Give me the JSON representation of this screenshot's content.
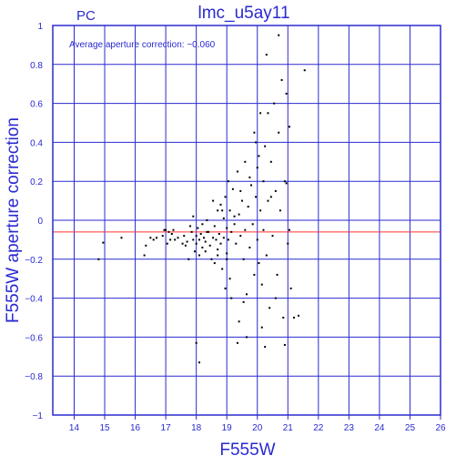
{
  "chart_data": {
    "type": "scatter",
    "title": "lmc_u5ay11",
    "corner_label": "PC",
    "annotation": "Average aperture correction: −0.060",
    "xlabel": "F555W",
    "ylabel": "F555W aperture correction",
    "xlim": [
      13.3,
      26
    ],
    "ylim": [
      -1,
      1
    ],
    "xticks": [
      14,
      15,
      16,
      17,
      18,
      19,
      20,
      21,
      22,
      23,
      24,
      25,
      26
    ],
    "yticks": [
      -1,
      -0.8,
      -0.6,
      -0.4,
      -0.2,
      0,
      0.2,
      0.4,
      0.6,
      0.8,
      1
    ],
    "ytick_labels": [
      "−1",
      "−0.8",
      "−0.6",
      "−0.4",
      "−0.2",
      "0",
      "0.2",
      "0.4",
      "0.6",
      "0.8",
      "1"
    ],
    "grid": true,
    "reference_line": {
      "y": -0.06,
      "color": "#ff3030"
    },
    "colors": {
      "frame": "#2a2ad0",
      "text": "#2a2ad0",
      "points": "#000000"
    },
    "points": [
      [
        14.8,
        -0.2
      ],
      [
        14.95,
        -0.115
      ],
      [
        15.55,
        -0.09
      ],
      [
        16.3,
        -0.18
      ],
      [
        16.35,
        -0.13
      ],
      [
        16.5,
        -0.09
      ],
      [
        16.6,
        -0.1
      ],
      [
        16.7,
        -0.09
      ],
      [
        16.9,
        -0.08
      ],
      [
        17.0,
        -0.05
      ],
      [
        17.05,
        -0.12
      ],
      [
        17.1,
        -0.06
      ],
      [
        17.15,
        -0.1
      ],
      [
        17.2,
        -0.07
      ],
      [
        17.25,
        -0.05
      ],
      [
        17.4,
        -0.09
      ],
      [
        17.6,
        -0.08
      ],
      [
        17.65,
        -0.13
      ],
      [
        17.7,
        -0.11
      ],
      [
        17.75,
        -0.2
      ],
      [
        17.8,
        -0.03
      ],
      [
        17.85,
        -0.06
      ],
      [
        17.9,
        -0.1
      ],
      [
        17.9,
        0.02
      ],
      [
        17.95,
        -0.16
      ],
      [
        18.0,
        -0.08
      ],
      [
        18.0,
        -0.12
      ],
      [
        18.05,
        -0.04
      ],
      [
        18.1,
        -0.1
      ],
      [
        18.1,
        -0.18
      ],
      [
        18.15,
        -0.07
      ],
      [
        18.2,
        -0.02
      ],
      [
        18.2,
        -0.14
      ],
      [
        18.25,
        -0.09
      ],
      [
        18.3,
        -0.11
      ],
      [
        18.35,
        0.0
      ],
      [
        18.4,
        -0.06
      ],
      [
        18.45,
        -0.13
      ],
      [
        18.5,
        -0.2
      ],
      [
        18.55,
        -0.09
      ],
      [
        18.6,
        -0.03
      ],
      [
        18.6,
        -0.22
      ],
      [
        18.65,
        -0.1
      ],
      [
        18.7,
        0.05
      ],
      [
        18.7,
        -0.15
      ],
      [
        18.75,
        -0.07
      ],
      [
        18.8,
        0.08
      ],
      [
        18.8,
        -0.12
      ],
      [
        18.85,
        -0.25
      ],
      [
        18.9,
        0.01
      ],
      [
        18.9,
        -0.09
      ],
      [
        18.95,
        0.12
      ],
      [
        19.0,
        -0.04
      ],
      [
        19.0,
        -0.17
      ],
      [
        19.05,
        0.2
      ],
      [
        19.05,
        -0.1
      ],
      [
        19.1,
        0.05
      ],
      [
        19.1,
        -0.3
      ],
      [
        19.15,
        -0.06
      ],
      [
        19.2,
        0.16
      ],
      [
        19.25,
        -0.02
      ],
      [
        19.3,
        -0.12
      ],
      [
        19.35,
        0.25
      ],
      [
        19.4,
        0.03
      ],
      [
        19.45,
        -0.08
      ],
      [
        19.5,
        0.1
      ],
      [
        19.55,
        -0.2
      ],
      [
        19.6,
        0.3
      ],
      [
        19.6,
        -0.05
      ],
      [
        19.65,
        -0.38
      ],
      [
        19.7,
        0.07
      ],
      [
        19.75,
        -0.14
      ],
      [
        19.8,
        0.18
      ],
      [
        19.85,
        -0.02
      ],
      [
        19.9,
        0.45
      ],
      [
        19.9,
        -0.28
      ],
      [
        19.95,
        0.12
      ],
      [
        20.0,
        -0.1
      ],
      [
        20.0,
        0.27
      ],
      [
        20.05,
        -0.22
      ],
      [
        20.1,
        0.05
      ],
      [
        20.1,
        0.55
      ],
      [
        20.15,
        -0.33
      ],
      [
        20.2,
        0.2
      ],
      [
        20.2,
        -0.05
      ],
      [
        20.25,
        0.38
      ],
      [
        20.3,
        -0.18
      ],
      [
        20.3,
        0.85
      ],
      [
        20.35,
        0.1
      ],
      [
        20.4,
        -0.45
      ],
      [
        20.45,
        0.3
      ],
      [
        20.5,
        -0.08
      ],
      [
        20.55,
        0.6
      ],
      [
        20.6,
        0.15
      ],
      [
        20.65,
        -0.28
      ],
      [
        20.7,
        0.45
      ],
      [
        20.75,
        0.05
      ],
      [
        20.8,
        0.72
      ],
      [
        20.85,
        -0.5
      ],
      [
        20.9,
        0.2
      ],
      [
        20.95,
        0.65
      ],
      [
        21.0,
        -0.12
      ],
      [
        21.05,
        0.48
      ],
      [
        21.1,
        -0.35
      ],
      [
        21.2,
        -0.5
      ],
      [
        21.35,
        -0.49
      ],
      [
        21.55,
        0.77
      ],
      [
        18.1,
        -0.73
      ],
      [
        18.0,
        -0.63
      ],
      [
        19.35,
        -0.63
      ],
      [
        19.65,
        -0.6
      ],
      [
        20.25,
        -0.65
      ],
      [
        20.9,
        -0.64
      ],
      [
        20.95,
        0.19
      ],
      [
        19.95,
        0.4
      ],
      [
        20.35,
        0.55
      ],
      [
        20.7,
        0.95
      ],
      [
        21.05,
        -0.05
      ],
      [
        18.95,
        -0.35
      ],
      [
        19.55,
        -0.42
      ],
      [
        18.35,
        -0.06
      ],
      [
        18.55,
        0.1
      ],
      [
        18.85,
        0.05
      ],
      [
        19.25,
        0.02
      ],
      [
        19.45,
        0.15
      ],
      [
        19.75,
        0.22
      ],
      [
        20.05,
        0.33
      ],
      [
        20.45,
        0.12
      ],
      [
        19.0,
        -0.2
      ],
      [
        18.7,
        -0.18
      ],
      [
        18.3,
        -0.16
      ],
      [
        17.55,
        -0.12
      ],
      [
        17.3,
        -0.1
      ],
      [
        16.95,
        -0.05
      ],
      [
        19.15,
        -0.4
      ],
      [
        19.4,
        -0.52
      ],
      [
        20.6,
        -0.4
      ],
      [
        20.15,
        -0.55
      ]
    ]
  }
}
